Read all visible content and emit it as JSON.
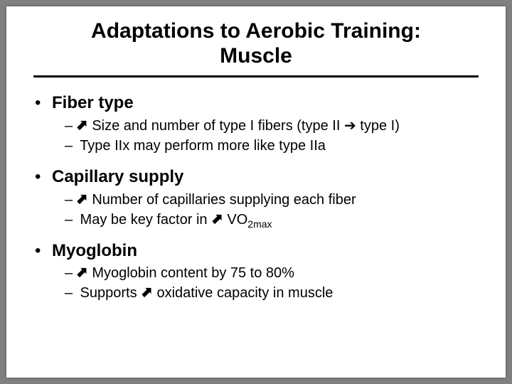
{
  "slide": {
    "title_line1": "Adaptations to Aerobic Training:",
    "title_line2": "Muscle",
    "background_color": "#ffffff",
    "page_background": "#808080",
    "title_fontsize": 30,
    "rule_color": "#000000",
    "rule_thickness": 3,
    "bullets": [
      {
        "label": "Fiber type",
        "subs": [
          {
            "prefix": "–",
            "arrow_up": true,
            "text": " Size and number of type I fibers (type II ",
            "right_arrow": true,
            "text_after": " type I)"
          },
          {
            "prefix": "–",
            "arrow_up": false,
            "text": " Type IIx may perform more like type IIa"
          }
        ]
      },
      {
        "label": "Capillary supply",
        "subs": [
          {
            "prefix": "–",
            "arrow_up": true,
            "text": " Number of capillaries supplying each fiber"
          },
          {
            "prefix": "–",
            "arrow_up": false,
            "text": " May be key factor in ",
            "arrow_up_inline": true,
            "text_after": " VO",
            "subscript": "2max"
          }
        ]
      },
      {
        "label": "Myoglobin",
        "subs": [
          {
            "prefix": "–",
            "arrow_up": true,
            "text": " Myoglobin content by 75 to 80%"
          },
          {
            "prefix": "–",
            "arrow_up": false,
            "text": " Supports ",
            "arrow_up_inline": true,
            "text_after": " oxidative capacity in muscle"
          }
        ]
      }
    ],
    "symbols": {
      "bullet_dot": "•",
      "dash": "–",
      "up_arrow": "↗",
      "right_arrow": "→"
    },
    "top_fontsize": 24,
    "sub_fontsize": 20
  }
}
